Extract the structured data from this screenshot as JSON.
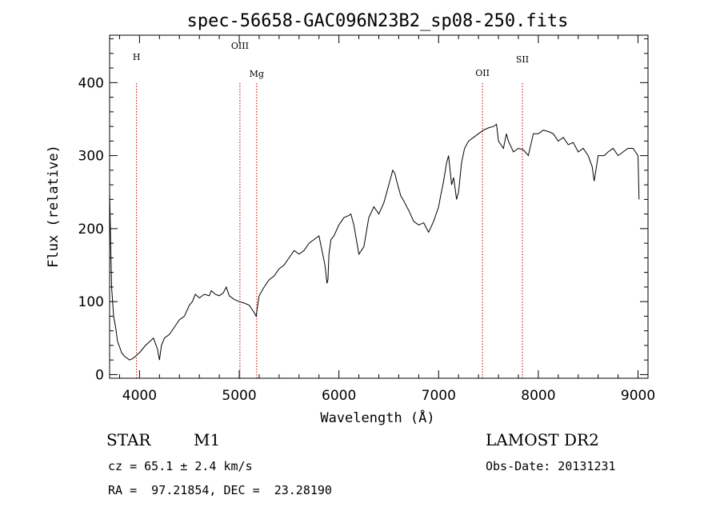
{
  "chart_data": {
    "type": "line",
    "title": "spec-56658-GAC096N23B2_sp08-250.fits",
    "xlabel": "Wavelength (Å)",
    "ylabel": "Flux (relative)",
    "xlim": [
      3700,
      9100
    ],
    "ylim": [
      -5,
      465
    ],
    "xticks": [
      4000,
      5000,
      6000,
      7000,
      8000,
      9000
    ],
    "yticks": [
      0,
      100,
      200,
      300,
      400
    ],
    "grid": false,
    "line_color": "#000000",
    "marker_color": "#c00000",
    "spectral_lines": [
      {
        "name": "H",
        "x": 3970
      },
      {
        "name": "OIII",
        "x": 5007
      },
      {
        "name": "Mg",
        "x": 5175
      },
      {
        "name": "OII",
        "x": 7440
      },
      {
        "name": "SII",
        "x": 7840
      }
    ],
    "series": [
      {
        "x": [
          3700,
          3720,
          3740,
          3760,
          3780,
          3800,
          3820,
          3850,
          3880,
          3900,
          3930,
          3960,
          3980,
          4000,
          4030,
          4060,
          4100,
          4140,
          4180,
          4200,
          4220,
          4250,
          4300,
          4350,
          4400,
          4450,
          4500,
          4530,
          4560,
          4600,
          4650,
          4700,
          4720,
          4760,
          4800,
          4840,
          4870,
          4900,
          4950,
          5000,
          5050,
          5100,
          5150,
          5170,
          5180,
          5200,
          5250,
          5300,
          5350,
          5400,
          5450,
          5500,
          5550,
          5600,
          5650,
          5700,
          5750,
          5800,
          5830,
          5860,
          5880,
          5890,
          5900,
          5920,
          5950,
          6000,
          6050,
          6100,
          6120,
          6150,
          6200,
          6250,
          6300,
          6350,
          6400,
          6450,
          6500,
          6520,
          6540,
          6563,
          6580,
          6600,
          6620,
          6650,
          6680,
          6700,
          6750,
          6800,
          6850,
          6880,
          6900,
          6950,
          7000,
          7020,
          7050,
          7080,
          7100,
          7130,
          7150,
          7170,
          7180,
          7200,
          7230,
          7260,
          7300,
          7350,
          7400,
          7450,
          7500,
          7550,
          7580,
          7600,
          7650,
          7680,
          7700,
          7750,
          7800,
          7850,
          7900,
          7950,
          8000,
          8050,
          8100,
          8150,
          8200,
          8250,
          8300,
          8350,
          8400,
          8450,
          8500,
          8540,
          8560,
          8600,
          8662,
          8700,
          8750,
          8800,
          8850,
          8900,
          8950,
          9000,
          9010
        ],
        "values": [
          250,
          120,
          80,
          65,
          45,
          38,
          30,
          25,
          22,
          20,
          22,
          25,
          28,
          30,
          35,
          40,
          45,
          50,
          35,
          20,
          40,
          50,
          55,
          65,
          75,
          80,
          95,
          100,
          110,
          105,
          110,
          108,
          115,
          110,
          108,
          112,
          120,
          108,
          103,
          100,
          98,
          95,
          85,
          80,
          90,
          108,
          120,
          130,
          135,
          145,
          150,
          160,
          170,
          165,
          170,
          180,
          185,
          190,
          170,
          150,
          125,
          130,
          165,
          185,
          190,
          205,
          215,
          218,
          220,
          205,
          165,
          175,
          215,
          230,
          220,
          235,
          260,
          270,
          280,
          275,
          265,
          255,
          245,
          238,
          230,
          225,
          210,
          205,
          208,
          200,
          195,
          210,
          230,
          245,
          265,
          290,
          300,
          260,
          270,
          250,
          240,
          250,
          290,
          310,
          320,
          325,
          330,
          335,
          338,
          340,
          343,
          320,
          310,
          330,
          320,
          305,
          310,
          308,
          300,
          330,
          330,
          335,
          333,
          330,
          320,
          325,
          315,
          318,
          305,
          310,
          300,
          285,
          265,
          300,
          300,
          305,
          310,
          300,
          305,
          310,
          310,
          300,
          240
        ]
      }
    ]
  },
  "info": {
    "object_class": "STAR",
    "subclass": "M1",
    "survey": "LAMOST DR2",
    "cz": "cz = 65.1 ± 2.4 km/s",
    "obs_date": "Obs-Date: 20131231",
    "radec": "RA =  97.21854, DEC =  23.28190"
  }
}
